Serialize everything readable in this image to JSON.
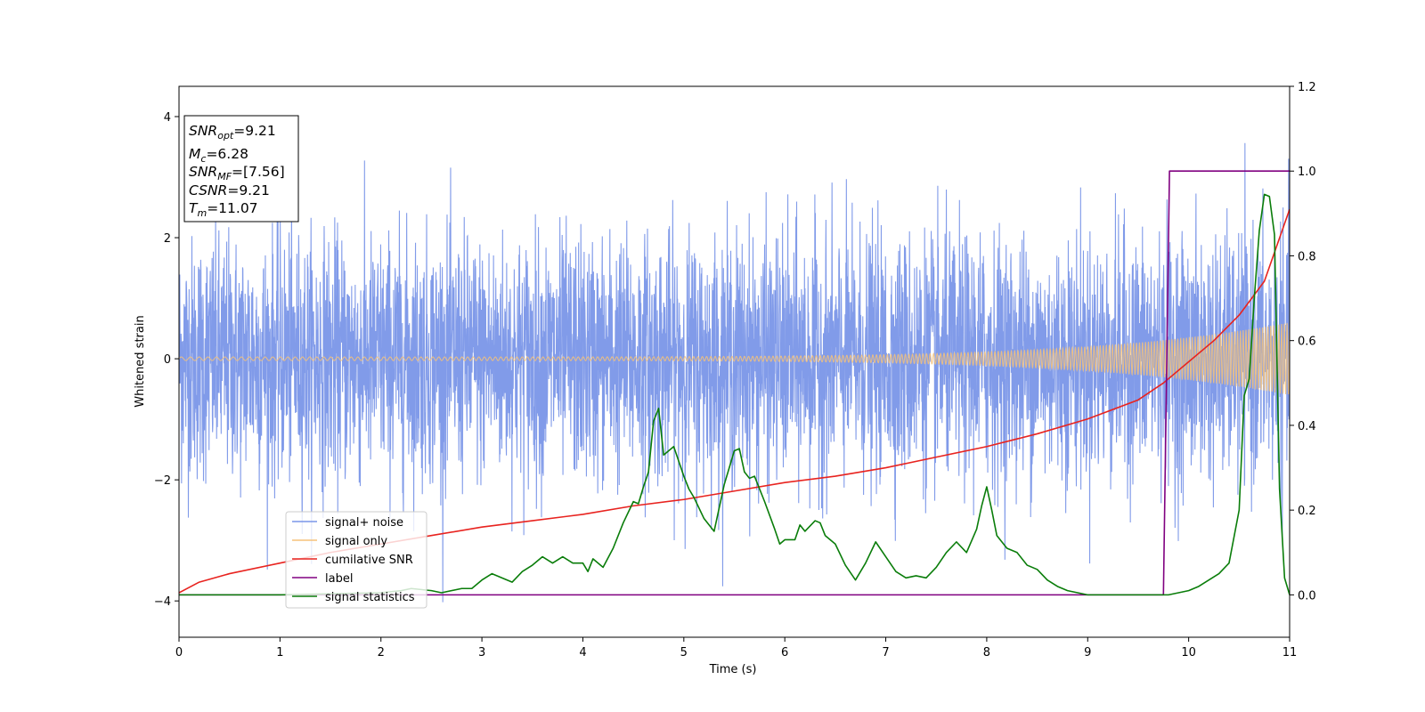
{
  "chart_data": {
    "type": "line",
    "xlabel": "Time (s)",
    "ylabel": "Whitened strain",
    "xlim": [
      0,
      11
    ],
    "ylim": [
      -4.6,
      4.5
    ],
    "y2lim": [
      -0.1,
      1.2
    ],
    "xticks": [
      "0",
      "1",
      "2",
      "3",
      "4",
      "5",
      "6",
      "7",
      "8",
      "9",
      "10",
      "11"
    ],
    "yticks": [
      "−4",
      "−2",
      "0",
      "2",
      "4"
    ],
    "y2ticks": [
      "0.0",
      "0.2",
      "0.4",
      "0.6",
      "0.8",
      "1.0",
      "1.2"
    ],
    "annotation": {
      "snr_opt": {
        "label": "SNR",
        "sub": "opt",
        "value": "=9.21"
      },
      "mc": {
        "label": "M",
        "sub": "c",
        "value": "=6.28"
      },
      "snr_mf": {
        "label": "SNR",
        "sub": "MF",
        "value": "=[7.56]"
      },
      "csnr": {
        "label": "CSNR",
        "value": "=9.21"
      },
      "tm": {
        "label": "T",
        "sub": "m",
        "value": "=11.07"
      }
    },
    "legend_position": "lower-left",
    "series": [
      {
        "name": "signal+ noise",
        "color": "#7a96e8",
        "axis": "left",
        "kind": "noise",
        "description_values": {
          "envelope_max": 3.6,
          "envelope_min": -3.6,
          "peak_max": 4.1,
          "peak_min": -4.15
        }
      },
      {
        "name": "signal only",
        "color": "#f5c27a",
        "axis": "left",
        "kind": "chirp",
        "amplitude_start": 0.03,
        "amplitude_end": 0.6
      },
      {
        "name": "cumilative SNR",
        "color": "#e8231f",
        "axis": "right",
        "x": [
          0,
          0.2,
          0.5,
          1,
          1.5,
          2,
          2.5,
          3,
          3.5,
          4,
          4.5,
          5,
          5.5,
          6,
          6.5,
          7,
          7.5,
          8,
          8.5,
          9,
          9.5,
          9.75,
          10,
          10.25,
          10.5,
          10.75,
          11
        ],
        "values": [
          0.005,
          0.03,
          0.05,
          0.075,
          0.1,
          0.12,
          0.14,
          0.16,
          0.175,
          0.19,
          0.21,
          0.225,
          0.245,
          0.265,
          0.28,
          0.3,
          0.325,
          0.35,
          0.38,
          0.415,
          0.46,
          0.5,
          0.55,
          0.6,
          0.66,
          0.74,
          0.91
        ]
      },
      {
        "name": "label",
        "color": "#800080",
        "axis": "right",
        "x": [
          0,
          9.75,
          9.81,
          11
        ],
        "values": [
          0,
          0,
          1,
          1
        ]
      },
      {
        "name": "signal statistics",
        "color": "#0a7d0a",
        "axis": "right",
        "x": [
          0,
          1,
          2,
          2.2,
          2.3,
          2.5,
          2.6,
          2.8,
          2.9,
          3.0,
          3.1,
          3.2,
          3.3,
          3.4,
          3.5,
          3.6,
          3.7,
          3.8,
          3.9,
          4.0,
          4.05,
          4.1,
          4.2,
          4.3,
          4.4,
          4.5,
          4.55,
          4.6,
          4.65,
          4.7,
          4.75,
          4.8,
          4.9,
          5.0,
          5.05,
          5.1,
          5.2,
          5.3,
          5.4,
          5.5,
          5.55,
          5.6,
          5.65,
          5.7,
          5.8,
          5.9,
          5.95,
          6.0,
          6.1,
          6.15,
          6.2,
          6.3,
          6.35,
          6.4,
          6.5,
          6.6,
          6.7,
          6.8,
          6.9,
          7.0,
          7.1,
          7.2,
          7.3,
          7.4,
          7.5,
          7.6,
          7.7,
          7.8,
          7.9,
          7.95,
          8.0,
          8.05,
          8.1,
          8.2,
          8.3,
          8.4,
          8.5,
          8.6,
          8.7,
          8.8,
          8.9,
          9.0,
          9.2,
          9.5,
          9.8,
          10.0,
          10.1,
          10.2,
          10.3,
          10.4,
          10.5,
          10.55,
          10.6,
          10.65,
          10.7,
          10.75,
          10.8,
          10.85,
          10.9,
          10.95,
          11.0
        ],
        "values": [
          0.0,
          0.0,
          0.005,
          0.01,
          0.015,
          0.01,
          0.005,
          0.015,
          0.015,
          0.035,
          0.05,
          0.04,
          0.03,
          0.055,
          0.07,
          0.09,
          0.075,
          0.09,
          0.075,
          0.075,
          0.055,
          0.085,
          0.065,
          0.11,
          0.17,
          0.22,
          0.215,
          0.255,
          0.29,
          0.41,
          0.44,
          0.33,
          0.35,
          0.28,
          0.25,
          0.23,
          0.18,
          0.15,
          0.26,
          0.34,
          0.345,
          0.29,
          0.275,
          0.28,
          0.22,
          0.155,
          0.12,
          0.13,
          0.13,
          0.165,
          0.15,
          0.175,
          0.17,
          0.14,
          0.12,
          0.07,
          0.035,
          0.075,
          0.125,
          0.09,
          0.055,
          0.04,
          0.045,
          0.04,
          0.065,
          0.1,
          0.125,
          0.1,
          0.155,
          0.21,
          0.255,
          0.2,
          0.14,
          0.11,
          0.1,
          0.07,
          0.06,
          0.035,
          0.02,
          0.01,
          0.005,
          0.0,
          0.0,
          0.0,
          0.0,
          0.01,
          0.02,
          0.035,
          0.05,
          0.075,
          0.2,
          0.47,
          0.51,
          0.7,
          0.86,
          0.945,
          0.94,
          0.85,
          0.25,
          0.04,
          0.0
        ]
      }
    ]
  }
}
